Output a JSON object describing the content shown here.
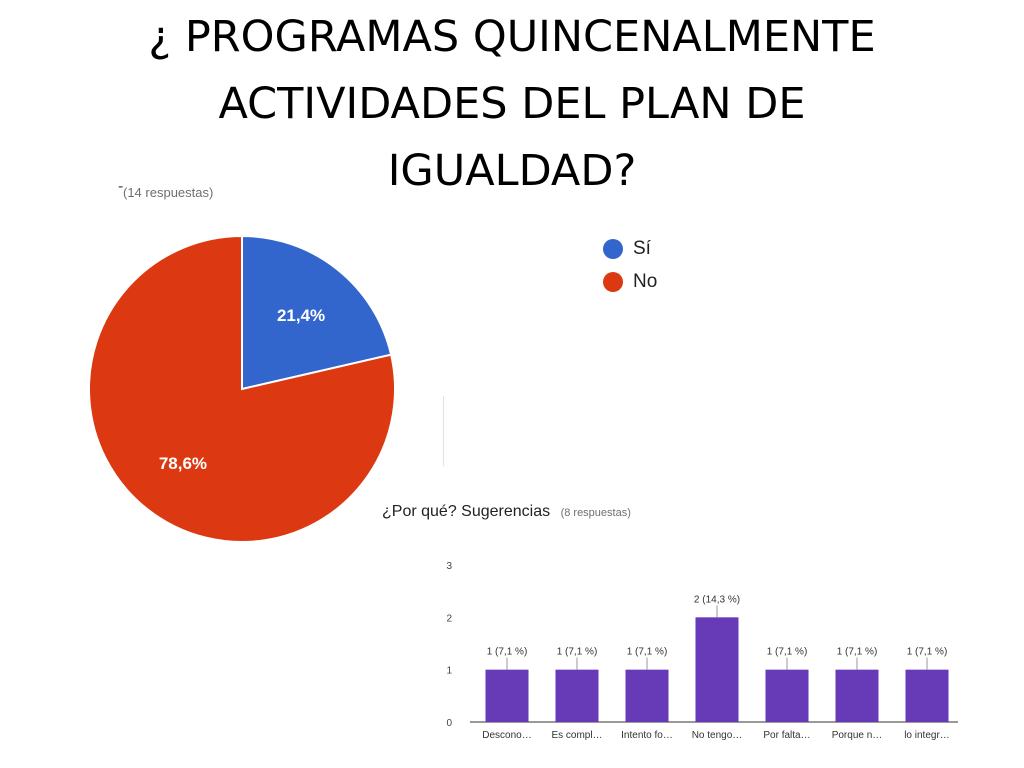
{
  "slide": {
    "title_lines": [
      "¿ PROGRAMAS QUINCENALMENTE",
      "ACTIVIDADES DEL PLAN DE",
      "IGUALDAD?"
    ],
    "dash": "-"
  },
  "chart_data": [
    {
      "type": "pie",
      "subtitle": "(14 respuestas)",
      "categories": [
        "Sí",
        "No"
      ],
      "values": [
        21.4,
        78.6
      ],
      "labels": [
        "21,4%",
        "78,6%"
      ],
      "colors": [
        "#3366cc",
        "#dc3912"
      ],
      "legend": "right"
    },
    {
      "type": "bar",
      "title": "¿Por qué? Sugerencias",
      "subtitle": "(8 respuestas)",
      "categories": [
        "Descono…",
        "Es compl…",
        "Intento fo…",
        "No tengo…",
        "Por falta…",
        "Porque n…",
        "lo integr…"
      ],
      "values": [
        1,
        1,
        1,
        2,
        1,
        1,
        1
      ],
      "data_labels": [
        "1 (7,1 %)",
        "1 (7,1 %)",
        "1 (7,1 %)",
        "2 (14,3 %)",
        "1 (7,1 %)",
        "1 (7,1 %)",
        "1 (7,1 %)"
      ],
      "ylim": [
        0,
        3
      ],
      "yticks": [
        0,
        1,
        2,
        3
      ],
      "color": "#673ab7",
      "grid": false
    }
  ]
}
